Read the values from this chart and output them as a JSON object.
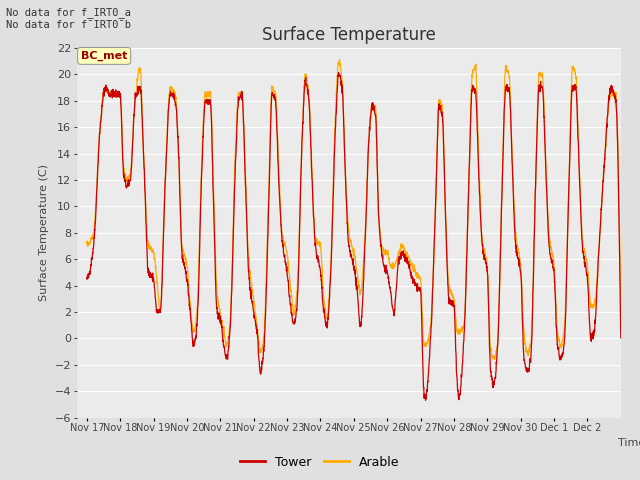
{
  "title": "Surface Temperature",
  "ylabel": "Surface Temperature (C)",
  "xlabel": "Time",
  "ylim": [
    -6,
    22
  ],
  "yticks": [
    -6,
    -4,
    -2,
    0,
    2,
    4,
    6,
    8,
    10,
    12,
    14,
    16,
    18,
    20,
    22
  ],
  "bg_color": "#e0e0e0",
  "plot_bg_color": "#ebebeb",
  "tower_color": "#cc0000",
  "arable_color": "#ffaa00",
  "no_data_text1": "No data for f_IRT0_a",
  "no_data_text2": "No data for f¯IRT0¯b",
  "bc_met_label": "BC_met",
  "legend_entries": [
    "Tower",
    "Arable"
  ],
  "x_tick_labels": [
    "Nov 17",
    "Nov 18",
    "Nov 19",
    "Nov 20",
    "Nov 21",
    "Nov 22",
    "Nov 23",
    "Nov 24",
    "Nov 25",
    "Nov 26",
    "Nov 27",
    "Nov 28",
    "Nov 29",
    "Nov 30",
    "Dec 1",
    "Dec 2"
  ],
  "num_days": 16
}
